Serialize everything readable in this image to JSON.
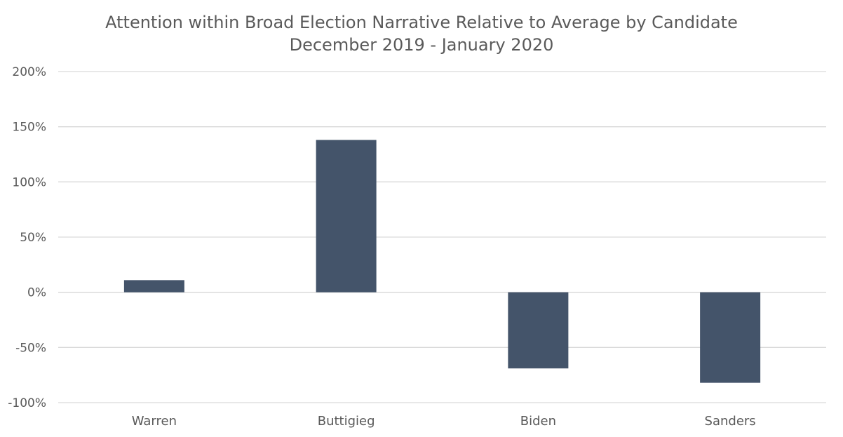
{
  "chart_data": {
    "type": "bar",
    "title": "Attention within Broad Election Narrative Relative to Average by Candidate",
    "subtitle": "December 2019 - January 2020",
    "categories": [
      "Warren",
      "Buttigieg",
      "Biden",
      "Sanders"
    ],
    "values": [
      11,
      138,
      -69,
      -82
    ],
    "value_unit": "%",
    "ylim": [
      -100,
      200
    ],
    "yticks": [
      -100,
      -50,
      0,
      50,
      100,
      150,
      200
    ],
    "ytick_labels": [
      "-100%",
      "-50%",
      "0%",
      "50%",
      "100%",
      "150%",
      "200%"
    ],
    "xlabel": "",
    "ylabel": "",
    "grid": true,
    "legend": "none",
    "bar_color": "#44546a",
    "grid_color": "#d9d9d9"
  }
}
